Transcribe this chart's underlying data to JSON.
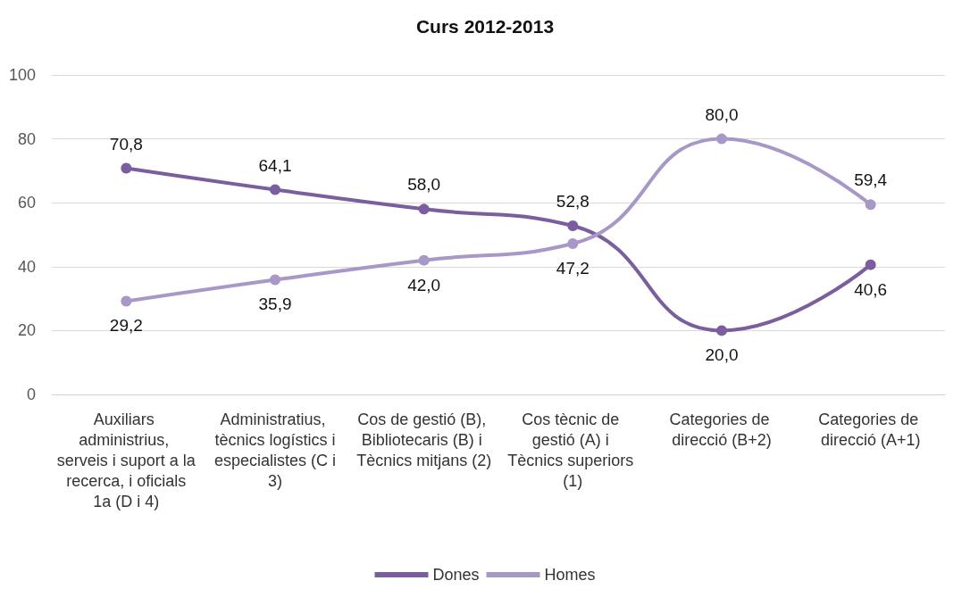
{
  "chart_data": {
    "type": "line",
    "title": "Curs 2012-2013",
    "categories": [
      "Auxiliars administrius, serveis i suport a la recerca, i oficials 1a (D i 4)",
      "Administratius, tècnics logístics i especialistes (C i 3)",
      "Cos de gestió (B), Bibliotecaris (B) i Tècnics mitjans (2)",
      "Cos tècnic de gestió (A) i Tècnics superiors (1)",
      "Categories de direcció (B+2)",
      "Categories de direcció (A+1)"
    ],
    "series": [
      {
        "name": "Dones",
        "color": "#7b5e9e",
        "values": [
          70.8,
          64.1,
          58.0,
          52.8,
          20.0,
          40.6
        ],
        "value_labels": [
          "70,8",
          "64,1",
          "58,0",
          "52,8",
          "20,0",
          "40,6"
        ]
      },
      {
        "name": "Homes",
        "color": "#a898c8",
        "values": [
          29.2,
          35.9,
          42.0,
          47.2,
          80.0,
          59.4
        ],
        "value_labels": [
          "29,2",
          "35,9",
          "42,0",
          "47,2",
          "80,0",
          "59,4"
        ]
      }
    ],
    "ylim": [
      0,
      100
    ],
    "yticks": [
      0,
      20,
      40,
      60,
      80,
      100
    ],
    "grid": "y",
    "legend": "bottom",
    "marker": "circle",
    "line_style": "solid"
  }
}
